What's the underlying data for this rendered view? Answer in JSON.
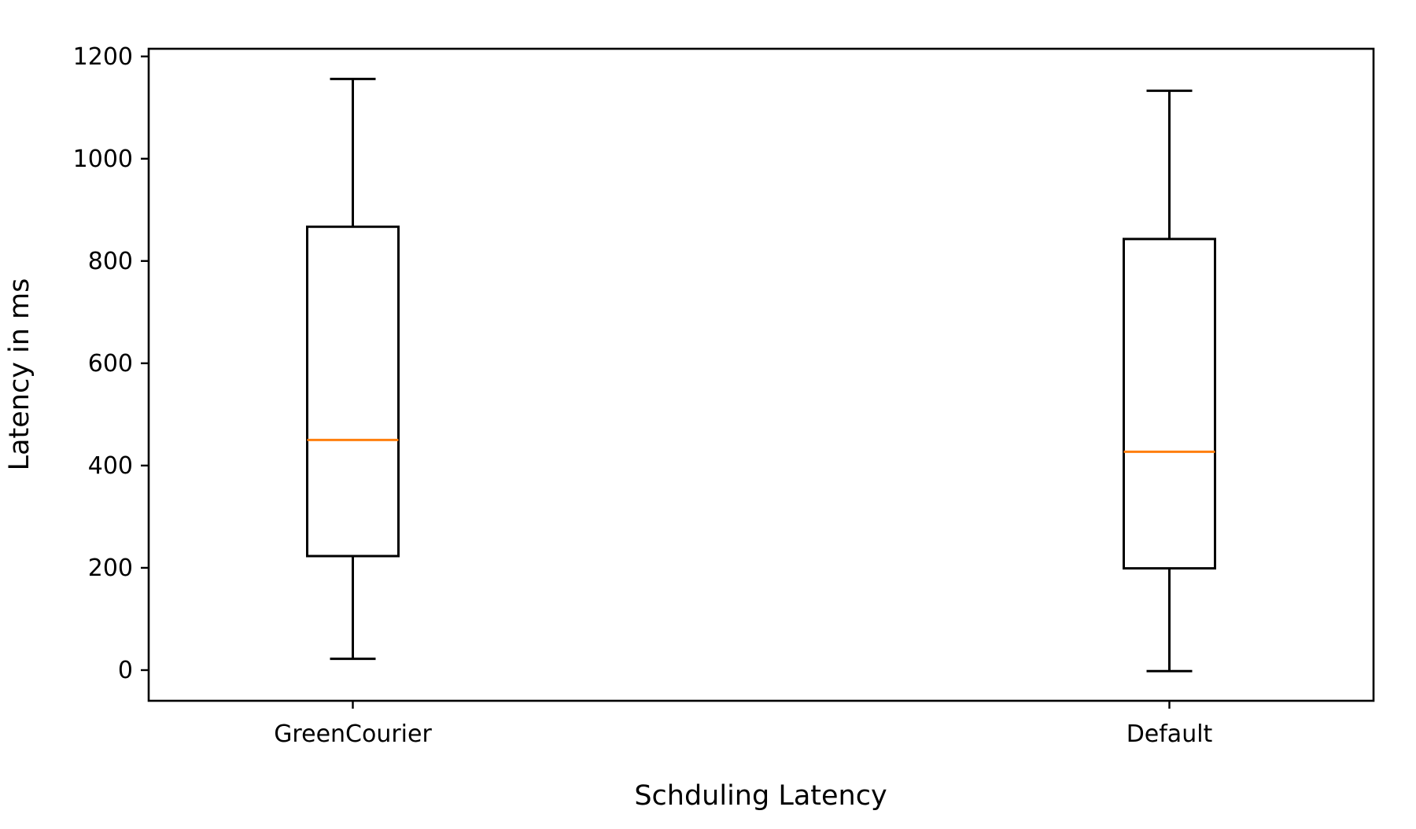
{
  "chart_data": {
    "type": "box",
    "xlabel": "Schduling Latency",
    "ylabel": "Latency in ms",
    "categories": [
      "GreenCourier",
      "Default"
    ],
    "ylim": [
      -60,
      1215
    ],
    "yticks": [
      0,
      200,
      400,
      600,
      800,
      1000,
      1200
    ],
    "boxes": [
      {
        "category": "GreenCourier",
        "whisker_low": 22,
        "q1": 223,
        "median": 450,
        "q3": 867,
        "whisker_high": 1156
      },
      {
        "category": "Default",
        "whisker_low": -2,
        "q1": 199,
        "median": 427,
        "q3": 843,
        "whisker_high": 1133
      }
    ],
    "grid": false,
    "colors": {
      "box": "#000000",
      "median": "#ff7f0e",
      "axes": "#000000"
    }
  }
}
